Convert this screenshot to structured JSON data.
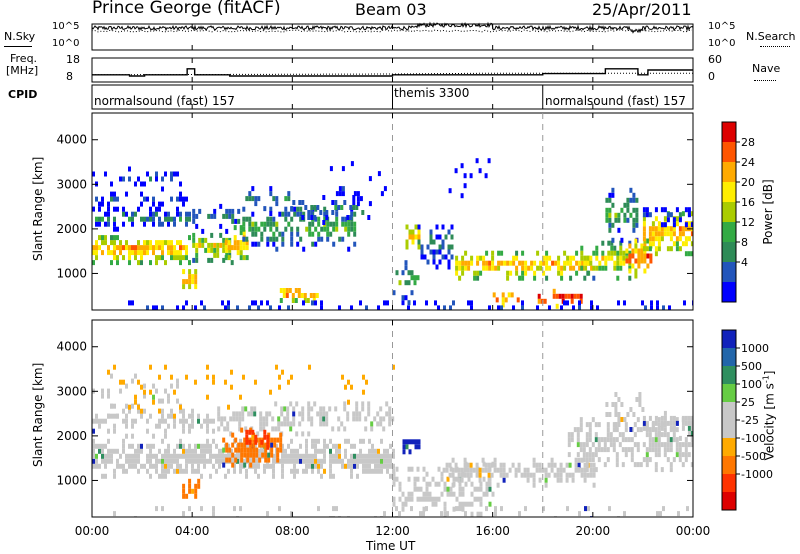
{
  "header": {
    "station": "Prince George (fitACF)",
    "beam": "Beam 03",
    "date": "25/Apr/2011"
  },
  "noise_panel": {
    "left_label": "N.Sky",
    "right_label": "N.Search",
    "left_ticks": [
      "10^5",
      "10^0"
    ],
    "right_ticks": [
      "10^5",
      "10^0"
    ]
  },
  "freq_panel": {
    "left_label_1": "Freq.",
    "left_label_2": "[MHz]",
    "right_label": "Nave",
    "left_ticks": [
      "18",
      "8"
    ],
    "right_ticks": [
      "60",
      "0"
    ]
  },
  "cpid_panel": {
    "label": "CPID",
    "segments": [
      {
        "name": "normalsound (fast) 157",
        "start_hour": 0
      },
      {
        "name": "themis 3300",
        "start_hour": 12
      },
      {
        "name": "normalsound (fast) 157",
        "start_hour": 18
      }
    ]
  },
  "power_panel": {
    "ylabel": "Slant Range [km]",
    "cbar_label": "Power [dB]",
    "cbar_ticks": [
      "28",
      "24",
      "20",
      "16",
      "12",
      "8",
      "4"
    ],
    "cbar_colors": [
      "#dd0000",
      "#ff5500",
      "#ffaa00",
      "#ffee00",
      "#aacc00",
      "#33aa44",
      "#2e8b57",
      "#2255bb",
      "#0000ff"
    ]
  },
  "velocity_panel": {
    "ylabel": "Slant Range [km]",
    "cbar_label": "Velocity [m s",
    "cbar_label_sup": "-1",
    "cbar_label_end": "]",
    "cbar_ticks": [
      "1000",
      "500",
      "100",
      "25",
      "-25",
      "-100",
      "-500",
      "-1000"
    ],
    "cbar_colors": [
      "#1122bb",
      "#2266aa",
      "#2f8f5f",
      "#66cc44",
      "#c8c8c8",
      "#c8c8c8",
      "#ffaa00",
      "#ff7700",
      "#ff3300",
      "#dd0000"
    ]
  },
  "chart_data": {
    "type": "heatmap",
    "title": "Prince George (fitACF)",
    "subtitle": "Beam 03  25/Apr/2011",
    "xlabel": "Time UT",
    "ylabel": "Slant Range [km]",
    "x_ticks": [
      "00:00",
      "04:00",
      "08:00",
      "12:00",
      "16:00",
      "20:00",
      "00:00"
    ],
    "xlim_hours": [
      0,
      24
    ],
    "y_ticks": [
      1000,
      2000,
      3000,
      4000
    ],
    "ylim_km": [
      180,
      4600
    ],
    "frequency_mhz": [
      {
        "t": 0,
        "f": 11
      },
      {
        "t": 1.5,
        "f": 10.5
      },
      {
        "t": 2.1,
        "f": 11
      },
      {
        "t": 3.8,
        "f": 13.5
      },
      {
        "t": 4.1,
        "f": 11
      },
      {
        "t": 5.5,
        "f": 10.5
      },
      {
        "t": 12,
        "f": 11
      },
      {
        "t": 18,
        "f": 11.5
      },
      {
        "t": 20.5,
        "f": 13.5
      },
      {
        "t": 21.8,
        "f": 11
      },
      {
        "t": 22.2,
        "f": 13
      },
      {
        "t": 24,
        "f": 13
      }
    ],
    "nave": [
      {
        "t": 0,
        "n": 18
      },
      {
        "t": 12,
        "n": 20
      },
      {
        "t": 16,
        "n": 22
      },
      {
        "t": 20,
        "n": 22
      },
      {
        "t": 24,
        "n": 22
      }
    ],
    "power_db_scale": [
      4,
      28
    ],
    "velocity_scale": [
      -1000,
      1000
    ]
  }
}
